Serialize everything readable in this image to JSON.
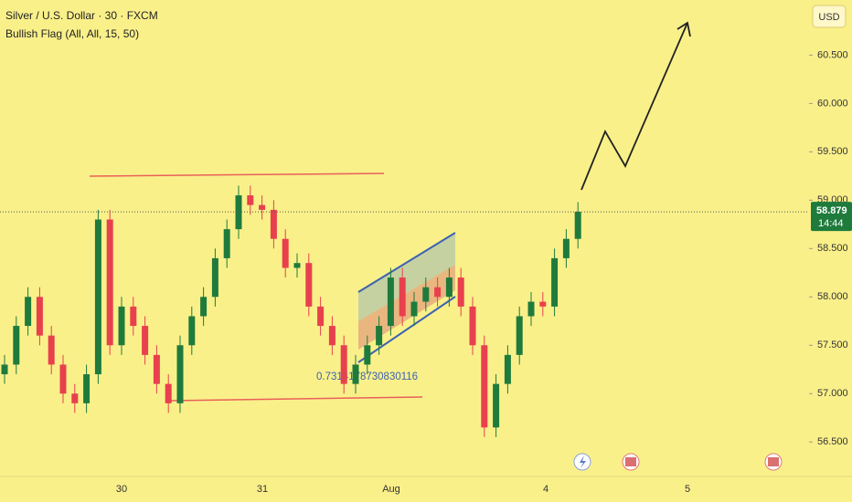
{
  "chart_data": {
    "type": "candlestick",
    "title": "Silver / U.S. Dollar · 30 · FXCM",
    "subtitle": "Bullish Flag (All, All, 15, 50)",
    "currency": "USD",
    "annotation": "0.7314178730830116",
    "current_price": 58.879,
    "countdown": "14:44",
    "up_color": "#1e7b3c",
    "down_color": "#e8404d",
    "x_labels": [
      "30",
      "31",
      "Aug",
      "4",
      "5"
    ],
    "ylim": [
      56.2,
      60.9
    ],
    "yticks": [
      {
        "value": 56.5,
        "label": "56.500"
      },
      {
        "value": 57,
        "label": "57.000"
      },
      {
        "value": 57.5,
        "label": "57.500"
      },
      {
        "value": 58,
        "label": "58.000"
      },
      {
        "value": 58.5,
        "label": "58.500"
      },
      {
        "value": 59,
        "label": "59.000"
      },
      {
        "value": 59.5,
        "label": "59.500"
      },
      {
        "value": 60,
        "label": "60.000"
      },
      {
        "value": 60.5,
        "label": "60.500"
      }
    ],
    "open": [
      57.2,
      57.3,
      57.7,
      58.0,
      57.6,
      57.3,
      57.0,
      56.9,
      57.2,
      58.8,
      57.5,
      57.9,
      57.7,
      57.4,
      57.1,
      56.9,
      57.5,
      57.8,
      58.0,
      58.4,
      58.7,
      59.05,
      58.95,
      58.9,
      58.6,
      58.3,
      58.35,
      57.9,
      57.7,
      57.5,
      57.1,
      57.3,
      57.5,
      57.7,
      58.2,
      57.8,
      57.95,
      58.1,
      58.0,
      58.2,
      57.9,
      57.5,
      56.65,
      57.1,
      57.4,
      57.8,
      57.95,
      57.9,
      58.4,
      58.6
    ],
    "high": [
      57.4,
      57.8,
      58.1,
      58.1,
      57.7,
      57.4,
      57.1,
      57.3,
      58.9,
      58.9,
      58.0,
      58.0,
      57.8,
      57.5,
      57.2,
      57.6,
      57.9,
      58.1,
      58.5,
      58.8,
      59.15,
      59.15,
      59.05,
      59.0,
      58.7,
      58.45,
      58.45,
      58.0,
      57.8,
      57.6,
      57.4,
      57.6,
      57.8,
      58.3,
      58.3,
      58.05,
      58.2,
      58.2,
      58.3,
      58.3,
      58.0,
      57.6,
      57.2,
      57.5,
      57.9,
      58.05,
      58.05,
      58.5,
      58.7,
      58.98
    ],
    "low": [
      57.1,
      57.2,
      57.6,
      57.5,
      57.2,
      56.9,
      56.8,
      56.8,
      57.1,
      57.4,
      57.4,
      57.6,
      57.3,
      57.0,
      56.8,
      56.8,
      57.4,
      57.7,
      57.9,
      58.3,
      58.6,
      58.85,
      58.8,
      58.5,
      58.2,
      58.2,
      57.8,
      57.6,
      57.4,
      57.0,
      57.0,
      57.2,
      57.4,
      57.6,
      57.7,
      57.7,
      57.85,
      57.9,
      57.9,
      57.8,
      57.4,
      56.55,
      56.55,
      57.0,
      57.3,
      57.7,
      57.8,
      57.8,
      58.3,
      58.5
    ],
    "close": [
      57.3,
      57.7,
      58.0,
      57.6,
      57.3,
      57.0,
      56.9,
      57.2,
      58.8,
      57.5,
      57.9,
      57.7,
      57.4,
      57.1,
      56.9,
      57.5,
      57.8,
      58.0,
      58.4,
      58.7,
      59.05,
      58.95,
      58.9,
      58.6,
      58.3,
      58.35,
      57.9,
      57.7,
      57.5,
      57.1,
      57.3,
      57.5,
      57.7,
      58.2,
      57.8,
      57.95,
      58.1,
      58.0,
      58.2,
      57.9,
      57.5,
      56.65,
      57.1,
      57.4,
      57.8,
      57.95,
      57.9,
      58.4,
      58.6,
      58.88
    ]
  }
}
